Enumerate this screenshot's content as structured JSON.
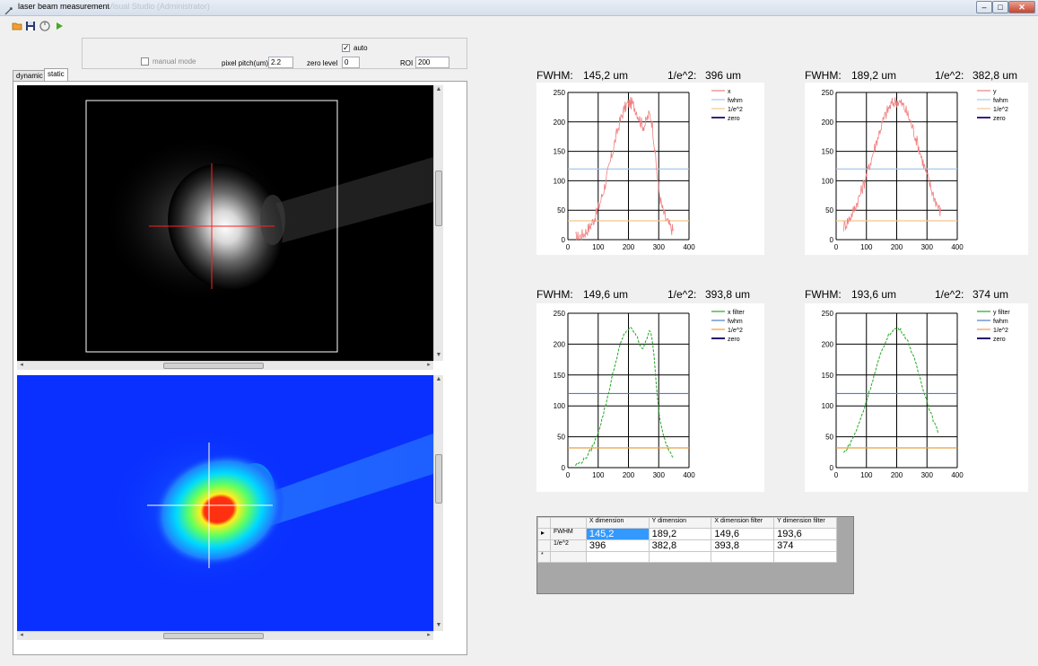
{
  "window": {
    "title": "laser beam measurement",
    "ghost_title": "Visual Studio (Administrator)",
    "minimize": "–",
    "maximize": "□",
    "close": "✕"
  },
  "toolbar": {
    "icons": [
      "open-folder-icon",
      "save-icon",
      "stop-icon",
      "play-icon"
    ]
  },
  "settings": {
    "auto_label": "auto",
    "auto_checked": true,
    "manual_mode_label": "manual mode",
    "manual_mode_checked": false,
    "pixel_pitch_label": "pixel pitch(um)",
    "pixel_pitch_value": "2.2",
    "zero_level_label": "zero level",
    "zero_level_value": "0",
    "roi_label": "ROI",
    "roi_value": "200"
  },
  "tabs": [
    "dynamic",
    "static"
  ],
  "active_tab": "static",
  "plots": [
    {
      "fwhm_label": "FWHM:",
      "fwhm_value": "145,2 um",
      "e2_label": "1/e^2:",
      "e2_value": "396 um",
      "chart_data": {
        "type": "line",
        "xlim": [
          0,
          400
        ],
        "ylim": [
          0,
          250
        ],
        "xticks": [
          0,
          100,
          200,
          300,
          400
        ],
        "yticks": [
          0,
          50,
          100,
          150,
          200,
          250
        ],
        "series": [
          {
            "name": "x",
            "color": "#f08080",
            "kind": "raw"
          },
          {
            "name": "fwhm",
            "color": "#a6c8e6",
            "value": 120
          },
          {
            "name": "1/e^2",
            "color": "#f2c68c",
            "value": 32
          },
          {
            "name": "zero",
            "color": "#3a1f7a",
            "value": 0
          }
        ],
        "profile": {
          "peak_x": 205,
          "peak_y": 232,
          "fwhm_half_width": 72,
          "shoulder_x": 275,
          "shoulder_y": 85,
          "x_start": 25,
          "x_end": 350
        }
      }
    },
    {
      "fwhm_label": "FWHM:",
      "fwhm_value": "189,2 um",
      "e2_label": "1/e^2:",
      "e2_value": "382,8 um",
      "chart_data": {
        "type": "line",
        "xlim": [
          0,
          400
        ],
        "ylim": [
          0,
          250
        ],
        "xticks": [
          0,
          100,
          200,
          300,
          400
        ],
        "yticks": [
          0,
          50,
          100,
          150,
          200,
          250
        ],
        "series": [
          {
            "name": "y",
            "color": "#f08080",
            "kind": "raw"
          },
          {
            "name": "fwhm",
            "color": "#a6c8e6",
            "value": 120
          },
          {
            "name": "1/e^2",
            "color": "#f2c68c",
            "value": 32
          },
          {
            "name": "zero",
            "color": "#3a1f7a",
            "value": 0
          }
        ],
        "profile": {
          "peak_x": 200,
          "peak_y": 235,
          "fwhm_half_width": 95,
          "shoulder_x": 0,
          "shoulder_y": 0,
          "x_start": 25,
          "x_end": 345
        }
      }
    },
    {
      "fwhm_label": "FWHM:",
      "fwhm_value": "149,6 um",
      "e2_label": "1/e^2:",
      "e2_value": "393,8 um",
      "chart_data": {
        "type": "line",
        "xlim": [
          0,
          400
        ],
        "ylim": [
          0,
          250
        ],
        "xticks": [
          0,
          100,
          200,
          300,
          400
        ],
        "yticks": [
          0,
          50,
          100,
          150,
          200,
          250
        ],
        "series": [
          {
            "name": "x filter",
            "color": "#22a822",
            "kind": "filtered"
          },
          {
            "name": "fwhm",
            "color": "#4a7fcf",
            "value": 120
          },
          {
            "name": "1/e^2",
            "color": "#e8a040",
            "value": 32
          },
          {
            "name": "zero",
            "color": "#2a0a6a",
            "value": 0
          }
        ],
        "profile": {
          "peak_x": 205,
          "peak_y": 225,
          "fwhm_half_width": 75,
          "shoulder_x": 275,
          "shoulder_y": 95,
          "x_start": 25,
          "x_end": 350
        }
      }
    },
    {
      "fwhm_label": "FWHM:",
      "fwhm_value": "193,6 um",
      "e2_label": "1/e^2:",
      "e2_value": "374 um",
      "chart_data": {
        "type": "line",
        "xlim": [
          0,
          400
        ],
        "ylim": [
          0,
          250
        ],
        "xticks": [
          0,
          100,
          200,
          300,
          400
        ],
        "yticks": [
          0,
          50,
          100,
          150,
          200,
          250
        ],
        "series": [
          {
            "name": "y filter",
            "color": "#22a822",
            "kind": "filtered"
          },
          {
            "name": "fwhm",
            "color": "#4a7fcf",
            "value": 120
          },
          {
            "name": "1/e^2",
            "color": "#e8a040",
            "value": 32
          },
          {
            "name": "zero",
            "color": "#2a0a6a",
            "value": 0
          }
        ],
        "profile": {
          "peak_x": 200,
          "peak_y": 225,
          "fwhm_half_width": 97,
          "shoulder_x": 0,
          "shoulder_y": 0,
          "x_start": 25,
          "x_end": 340
        }
      }
    }
  ],
  "results_table": {
    "columns": [
      "X dimension",
      "Y dimension",
      "X dimension filter",
      "Y dimension filter"
    ],
    "rows": [
      {
        "header": "FWHM",
        "values": [
          "145,2",
          "189,2",
          "149,6",
          "193,6"
        ]
      },
      {
        "header": "1/e^2",
        "values": [
          "396",
          "382,8",
          "393,8",
          "374"
        ]
      }
    ],
    "row_marker": "▸",
    "new_row_marker": "*"
  }
}
